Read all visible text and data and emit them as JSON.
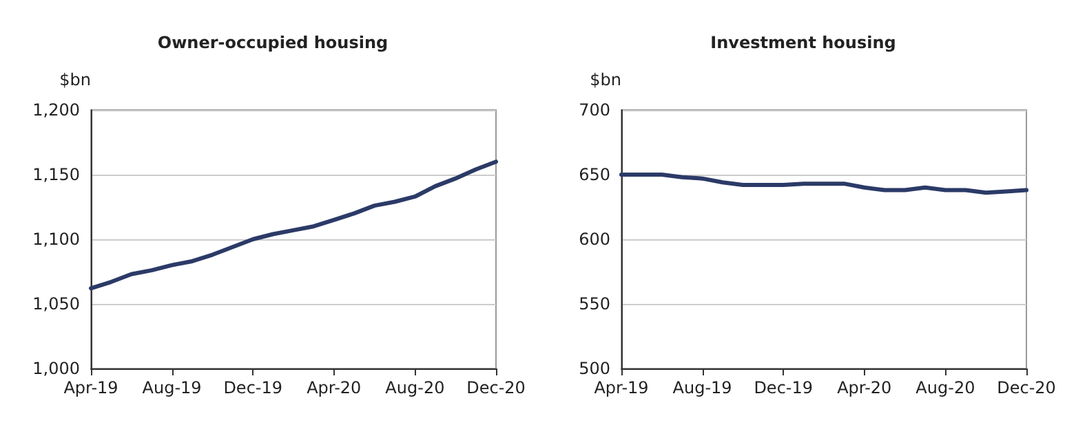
{
  "chart_data": [
    {
      "type": "line",
      "title": "Owner-occupied housing",
      "ylabel": "$bn",
      "categories": [
        "Apr-19",
        null,
        null,
        null,
        "Aug-19",
        null,
        null,
        null,
        "Dec-19",
        null,
        null,
        null,
        "Apr-20",
        null,
        null,
        null,
        "Aug-20",
        null,
        null,
        null,
        "Dec-20"
      ],
      "series": [
        {
          "color": "#2b3a67",
          "values": [
            1062,
            1067,
            1073,
            1076,
            1080,
            1083,
            1088,
            1094,
            1100,
            1104,
            1107,
            1110,
            1115,
            1120,
            1126,
            1129,
            1133,
            1141,
            1147,
            1154,
            1160
          ]
        }
      ],
      "ylim": [
        1000,
        1200
      ],
      "yticks": [
        {
          "value": 1000,
          "label": "1,000"
        },
        {
          "value": 1050,
          "label": "1,050"
        },
        {
          "value": 1100,
          "label": "1,100"
        },
        {
          "value": 1150,
          "label": "1,150"
        },
        {
          "value": 1200,
          "label": "1,200"
        }
      ],
      "grid": "y",
      "marker": "none",
      "line_style": "solid"
    },
    {
      "type": "line",
      "title": "Investment housing",
      "ylabel": "$bn",
      "categories": [
        "Apr-19",
        null,
        null,
        null,
        "Aug-19",
        null,
        null,
        null,
        "Dec-19",
        null,
        null,
        null,
        "Apr-20",
        null,
        null,
        null,
        "Aug-20",
        null,
        null,
        null,
        "Dec-20"
      ],
      "series": [
        {
          "color": "#2b3a67",
          "values": [
            650,
            650,
            650,
            648,
            647,
            644,
            642,
            642,
            642,
            643,
            643,
            643,
            640,
            638,
            638,
            640,
            638,
            638,
            636,
            637,
            638
          ]
        }
      ],
      "ylim": [
        500,
        700
      ],
      "yticks": [
        500,
        550,
        600,
        650,
        700
      ],
      "grid": "y",
      "marker": "none",
      "line_style": "solid"
    }
  ]
}
